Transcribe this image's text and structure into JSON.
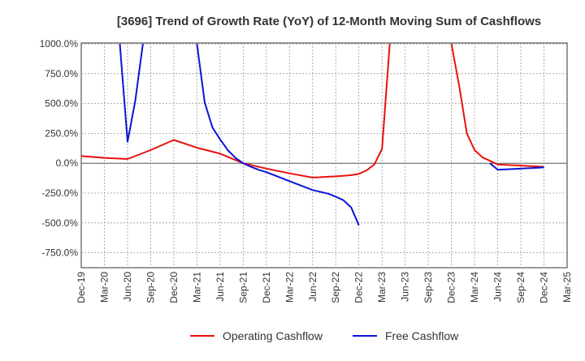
{
  "chart_data": {
    "type": "line",
    "title": "[3696]  Trend of Growth Rate (YoY) of 12-Month Moving Sum of Cashflows",
    "xlabel": "",
    "ylabel": "",
    "ylim": [
      -875,
      1000
    ],
    "yticks": [
      1000,
      750,
      500,
      250,
      0,
      -250,
      -500,
      -750
    ],
    "ytick_labels": [
      "1000.0%",
      "750.0%",
      "500.0%",
      "250.0%",
      "0.0%",
      "-250.0%",
      "-500.0%",
      "-750.0%"
    ],
    "xlim": [
      "2019-12",
      "2025-03"
    ],
    "x_tick_labels": [
      "Dec-19",
      "Mar-20",
      "Jun-20",
      "Sep-20",
      "Dec-20",
      "Mar-21",
      "Jun-21",
      "Sep-21",
      "Dec-21",
      "Mar-22",
      "Jun-22",
      "Sep-22",
      "Dec-22",
      "Mar-23",
      "Jun-23",
      "Sep-23",
      "Dec-23",
      "Mar-24",
      "Jun-24",
      "Sep-24",
      "Dec-24",
      "Mar-25"
    ],
    "grid": true,
    "legend": "bottom",
    "series": [
      {
        "name": "Operating Cashflow",
        "color": "#e8120e",
        "points": [
          [
            "2019-12",
            60
          ],
          [
            "2020-03",
            45
          ],
          [
            "2020-06",
            35
          ],
          [
            "2020-09",
            110
          ],
          [
            "2020-12",
            195
          ],
          [
            "2021-03",
            130
          ],
          [
            "2021-06",
            80
          ],
          [
            "2021-09",
            0
          ],
          [
            "2021-12",
            -45
          ],
          [
            "2022-03",
            -85
          ],
          [
            "2022-06",
            -120
          ],
          [
            "2022-09",
            -110
          ],
          [
            "2022-10",
            -105
          ],
          [
            "2022-11",
            -100
          ],
          [
            "2022-12",
            -90
          ],
          [
            "2023-01",
            -60
          ],
          [
            "2023-02",
            -10
          ],
          [
            "2023-03",
            120
          ],
          [
            "2023-04",
            1000
          ],
          null,
          [
            "2023-12",
            1000
          ],
          [
            "2024-01",
            650
          ],
          [
            "2024-02",
            250
          ],
          [
            "2024-03",
            110
          ],
          [
            "2024-04",
            50
          ],
          [
            "2024-05",
            20
          ],
          [
            "2024-06",
            -10
          ],
          [
            "2024-09",
            -20
          ],
          [
            "2024-12",
            -30
          ]
        ]
      },
      {
        "name": "Free Cashflow",
        "color": "#0a14d8",
        "points": [
          [
            "2020-05",
            1000
          ],
          [
            "2020-06",
            180
          ],
          [
            "2020-07",
            520
          ],
          [
            "2020-08",
            1000
          ],
          null,
          [
            "2021-03",
            1000
          ],
          [
            "2021-04",
            510
          ],
          [
            "2021-05",
            300
          ],
          [
            "2021-06",
            200
          ],
          [
            "2021-07",
            110
          ],
          [
            "2021-08",
            45
          ],
          [
            "2021-09",
            0
          ],
          [
            "2021-10",
            -30
          ],
          [
            "2021-11",
            -55
          ],
          [
            "2021-12",
            -75
          ],
          [
            "2022-03",
            -150
          ],
          [
            "2022-06",
            -225
          ],
          [
            "2022-08",
            -255
          ],
          [
            "2022-09",
            -280
          ],
          [
            "2022-10",
            -310
          ],
          [
            "2022-11",
            -370
          ],
          [
            "2022-12",
            -520
          ],
          null,
          [
            "2024-05",
            0
          ],
          [
            "2024-06",
            -55
          ],
          [
            "2024-12",
            -35
          ]
        ]
      }
    ]
  }
}
